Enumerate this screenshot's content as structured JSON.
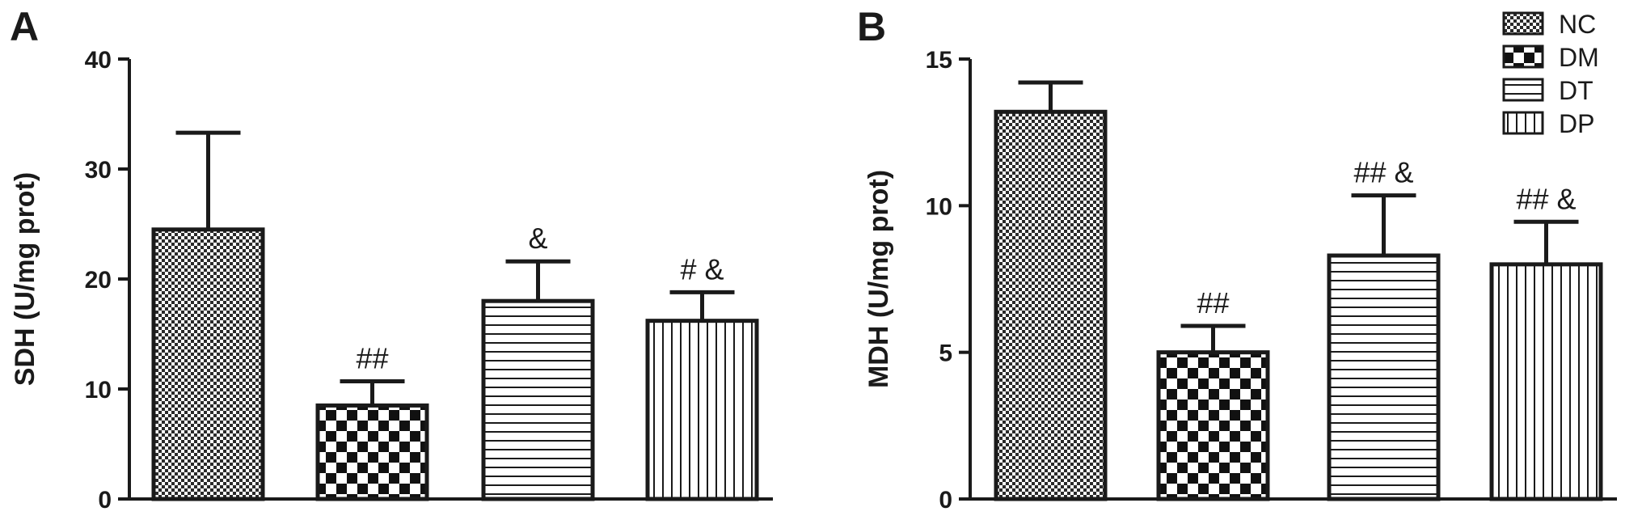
{
  "chart_data": [
    {
      "type": "bar",
      "panel": "A",
      "categories": [
        "NC",
        "DM",
        "DT",
        "DP"
      ],
      "values": [
        24.5,
        8.5,
        18.0,
        16.2
      ],
      "errors": [
        8.8,
        2.2,
        3.6,
        2.6
      ],
      "annotations": [
        "",
        "##",
        "&",
        "# &"
      ],
      "ylabel": "SDH (U/mg prot)",
      "ylim": [
        0,
        40
      ],
      "yticks": [
        0,
        10,
        20,
        30,
        40
      ],
      "grid": false
    },
    {
      "type": "bar",
      "panel": "B",
      "categories": [
        "NC",
        "DM",
        "DT",
        "DP"
      ],
      "values": [
        13.2,
        5.0,
        8.3,
        8.0
      ],
      "errors": [
        1.0,
        0.9,
        2.05,
        1.45
      ],
      "annotations": [
        "",
        "##",
        "## &",
        "## &"
      ],
      "ylabel": "MDH (U/mg prot)",
      "ylim": [
        0,
        15
      ],
      "yticks": [
        0,
        5,
        10,
        15
      ],
      "grid": false
    }
  ],
  "legend": {
    "placement": "top-right",
    "items": [
      {
        "label": "NC",
        "pattern": "fine-check"
      },
      {
        "label": "DM",
        "pattern": "coarse-check"
      },
      {
        "label": "DT",
        "pattern": "horizontal-lines"
      },
      {
        "label": "DP",
        "pattern": "vertical-lines"
      }
    ]
  },
  "colors": {
    "ink": "#1a1a1a",
    "background": "#ffffff"
  }
}
